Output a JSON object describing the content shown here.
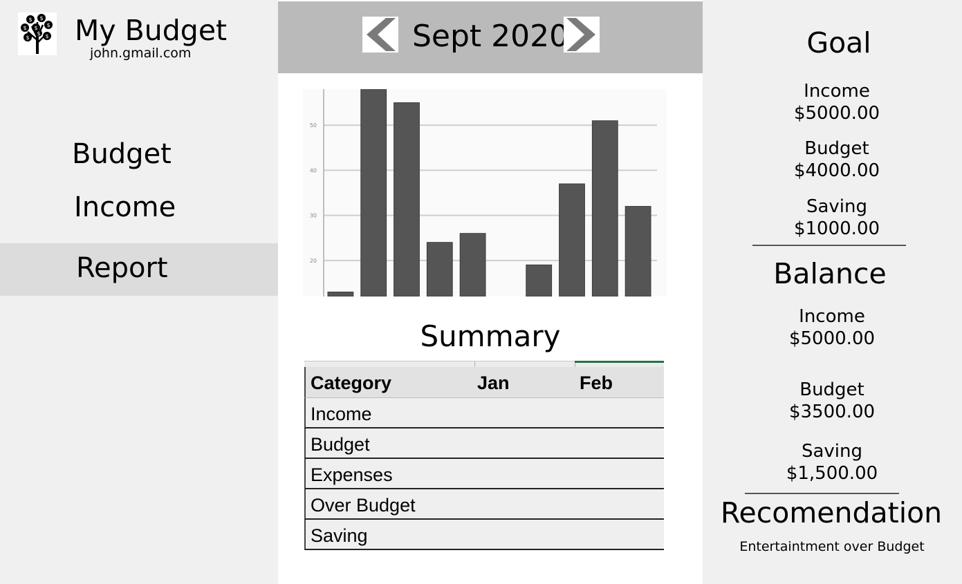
{
  "app": {
    "title": "My Budget",
    "email": "john.gmail.com",
    "logo_icon": "money-tree-icon"
  },
  "nav": {
    "items": [
      {
        "label": "Budget",
        "active": false
      },
      {
        "label": "Income",
        "active": false
      },
      {
        "label": "Report",
        "active": true
      }
    ]
  },
  "header": {
    "month": "Sept 2020",
    "prev_icon": "chevron-left-icon",
    "next_icon": "chevron-right-icon"
  },
  "chart_data": {
    "type": "bar",
    "values": [
      13,
      58,
      55,
      24,
      26,
      19,
      37,
      51,
      32
    ],
    "ylim": [
      12,
      58
    ],
    "yticks": [
      20,
      30,
      40,
      50
    ],
    "grid": true,
    "bar_color": "#555555"
  },
  "summary": {
    "title": "Summary",
    "columns": [
      "Category",
      "Jan",
      "Feb"
    ],
    "rows": [
      [
        "Income",
        "",
        ""
      ],
      [
        "Budget",
        "",
        ""
      ],
      [
        "Expenses",
        "",
        ""
      ],
      [
        "Over Budget",
        "",
        ""
      ],
      [
        "Saving",
        "",
        ""
      ]
    ]
  },
  "goal": {
    "title": "Goal",
    "income_label": "Income",
    "income_value": "$5000.00",
    "budget_label": "Budget",
    "budget_value": "$4000.00",
    "saving_label": "Saving",
    "saving_value": "$1000.00"
  },
  "balance": {
    "title": "Balance",
    "income_label": "Income",
    "income_value": "$5000.00",
    "budget_label": "Budget",
    "budget_value": "$3500.00",
    "saving_label": "Saving",
    "saving_value": "$1,500.00"
  },
  "recommendation": {
    "title": "Recomendation",
    "text": "Entertaintment over Budget"
  }
}
